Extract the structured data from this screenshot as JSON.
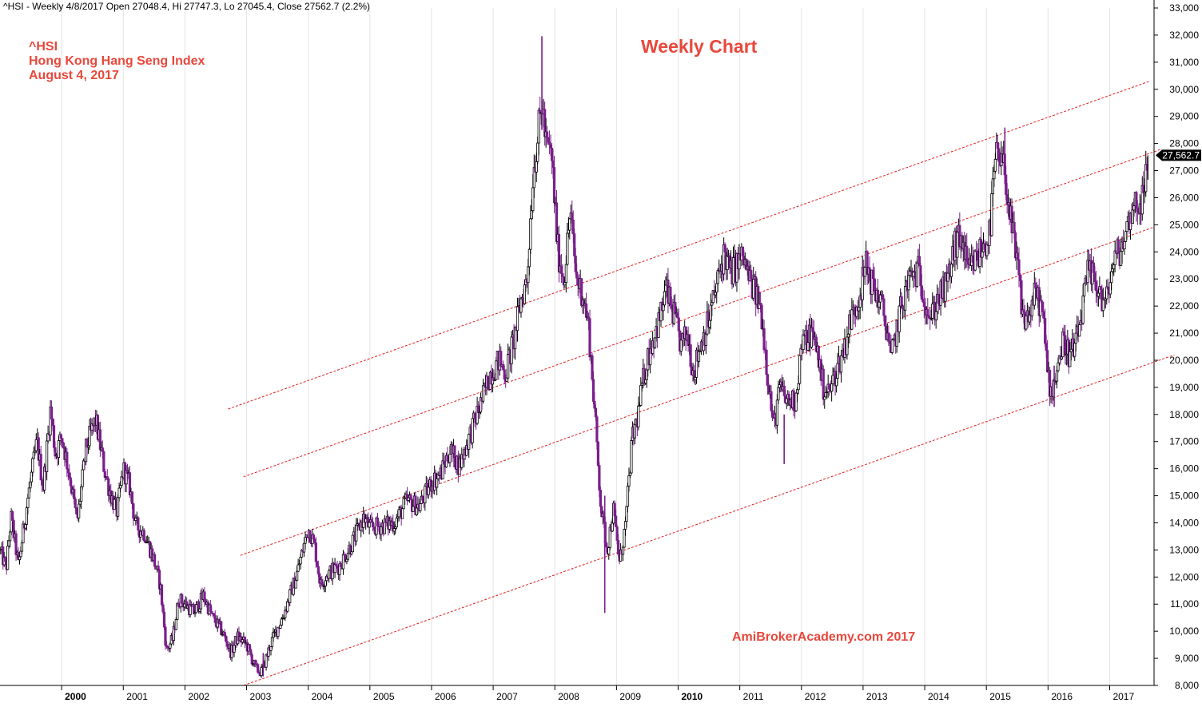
{
  "header": {
    "text": "^HSI - Weekly 4/8/2017 Open 27048.4, Hi 27747.3, Lo 27045.4, Close 27562.7 (2.2%)"
  },
  "notes": {
    "ticker": "^HSI",
    "name": "Hong Kong Hang Seng Index",
    "date": "August 4, 2017"
  },
  "watermark": "AmiBrokerAcademy.com  2017",
  "colors": {
    "candle": "#7a1f8c",
    "channel": "#e02020",
    "annotation": "#e8483c",
    "last_price_tag": "#000000"
  },
  "chart_data": {
    "type": "candlestick",
    "title": "Weekly Chart",
    "last_price": 27562.7,
    "last_price_label": "27,562.7",
    "ylim": [
      8000,
      33000
    ],
    "y_ticks": [
      8000,
      9000,
      10000,
      11000,
      12000,
      13000,
      14000,
      15000,
      16000,
      17000,
      18000,
      19000,
      20000,
      21000,
      22000,
      23000,
      24000,
      25000,
      26000,
      27000,
      28000,
      29000,
      30000,
      31000,
      32000,
      33000
    ],
    "y_tick_labels": [
      "8,000",
      "9,000",
      "10,000",
      "11,000",
      "12,000",
      "13,000",
      "14,000",
      "15,000",
      "16,000",
      "17,000",
      "18,000",
      "19,000",
      "20,000",
      "21,000",
      "22,000",
      "23,000",
      "24,000",
      "25,000",
      "26,000",
      "27,000",
      "28,000",
      "29,000",
      "30,000",
      "31,000",
      "32,000",
      "33,000"
    ],
    "xlim": [
      1999.0,
      2017.72
    ],
    "x_ticks": [
      {
        "label": "2000",
        "x": 2000.0,
        "bold": true
      },
      {
        "label": "2001",
        "x": 2001.0
      },
      {
        "label": "2002",
        "x": 2002.0
      },
      {
        "label": "2003",
        "x": 2003.0
      },
      {
        "label": "2004",
        "x": 2004.0
      },
      {
        "label": "2005",
        "x": 2005.0
      },
      {
        "label": "2006",
        "x": 2006.0
      },
      {
        "label": "2007",
        "x": 2007.0
      },
      {
        "label": "2008",
        "x": 2008.0
      },
      {
        "label": "2009",
        "x": 2009.0
      },
      {
        "label": "2010",
        "x": 2010.0,
        "bold": true
      },
      {
        "label": "2011",
        "x": 2011.0
      },
      {
        "label": "2012",
        "x": 2012.0
      },
      {
        "label": "2013",
        "x": 2013.0
      },
      {
        "label": "2014",
        "x": 2014.0
      },
      {
        "label": "2015",
        "x": 2015.0
      },
      {
        "label": "2016",
        "x": 2016.0
      },
      {
        "label": "2017",
        "x": 2017.0
      }
    ],
    "price_path": [
      [
        1999.0,
        13000
      ],
      [
        1999.1,
        12300
      ],
      [
        1999.18,
        14200
      ],
      [
        1999.3,
        12400
      ],
      [
        1999.45,
        14900
      ],
      [
        1999.6,
        17000
      ],
      [
        1999.7,
        15300
      ],
      [
        1999.82,
        18200
      ],
      [
        1999.9,
        16500
      ],
      [
        2000.0,
        17200
      ],
      [
        2000.15,
        15500
      ],
      [
        2000.25,
        14000
      ],
      [
        2000.4,
        16800
      ],
      [
        2000.55,
        17800
      ],
      [
        2000.7,
        15900
      ],
      [
        2000.8,
        15000
      ],
      [
        2000.9,
        14400
      ],
      [
        2001.0,
        16000
      ],
      [
        2001.1,
        15400
      ],
      [
        2001.2,
        13900
      ],
      [
        2001.35,
        13600
      ],
      [
        2001.5,
        12600
      ],
      [
        2001.6,
        11700
      ],
      [
        2001.7,
        9300
      ],
      [
        2001.8,
        9700
      ],
      [
        2001.9,
        11200
      ],
      [
        2002.05,
        10900
      ],
      [
        2002.15,
        10700
      ],
      [
        2002.3,
        11300
      ],
      [
        2002.45,
        10500
      ],
      [
        2002.6,
        10000
      ],
      [
        2002.75,
        9200
      ],
      [
        2002.85,
        9800
      ],
      [
        2003.0,
        9500
      ],
      [
        2003.15,
        8600
      ],
      [
        2003.25,
        8500
      ],
      [
        2003.4,
        9600
      ],
      [
        2003.6,
        10600
      ],
      [
        2003.8,
        12000
      ],
      [
        2004.0,
        13800
      ],
      [
        2004.1,
        13200
      ],
      [
        2004.2,
        11700
      ],
      [
        2004.3,
        12100
      ],
      [
        2004.5,
        12400
      ],
      [
        2004.7,
        13200
      ],
      [
        2004.9,
        14200
      ],
      [
        2005.0,
        13800
      ],
      [
        2005.2,
        13900
      ],
      [
        2005.4,
        14000
      ],
      [
        2005.6,
        14800
      ],
      [
        2005.8,
        14600
      ],
      [
        2006.0,
        15500
      ],
      [
        2006.15,
        15800
      ],
      [
        2006.3,
        16700
      ],
      [
        2006.45,
        16100
      ],
      [
        2006.6,
        17100
      ],
      [
        2006.8,
        18400
      ],
      [
        2006.95,
        19500
      ],
      [
        2007.1,
        20000
      ],
      [
        2007.2,
        19500
      ],
      [
        2007.35,
        20900
      ],
      [
        2007.45,
        22200
      ],
      [
        2007.55,
        23000
      ],
      [
        2007.65,
        27000
      ],
      [
        2007.8,
        29500
      ],
      [
        2007.85,
        28000
      ],
      [
        2007.95,
        27500
      ],
      [
        2008.05,
        24000
      ],
      [
        2008.15,
        23000
      ],
      [
        2008.25,
        25500
      ],
      [
        2008.35,
        23000
      ],
      [
        2008.45,
        22500
      ],
      [
        2008.55,
        21200
      ],
      [
        2008.65,
        18000
      ],
      [
        2008.75,
        14500
      ],
      [
        2008.85,
        13000
      ],
      [
        2008.95,
        14500
      ],
      [
        2009.05,
        12500
      ],
      [
        2009.15,
        14000
      ],
      [
        2009.25,
        17000
      ],
      [
        2009.35,
        18000
      ],
      [
        2009.45,
        19500
      ],
      [
        2009.55,
        20500
      ],
      [
        2009.7,
        21500
      ],
      [
        2009.8,
        22600
      ],
      [
        2009.95,
        21500
      ],
      [
        2010.05,
        20500
      ],
      [
        2010.15,
        21000
      ],
      [
        2010.25,
        19500
      ],
      [
        2010.35,
        20500
      ],
      [
        2010.5,
        21500
      ],
      [
        2010.6,
        22500
      ],
      [
        2010.75,
        24000
      ],
      [
        2010.85,
        23200
      ],
      [
        2010.95,
        23500
      ],
      [
        2011.05,
        23800
      ],
      [
        2011.15,
        23000
      ],
      [
        2011.25,
        22500
      ],
      [
        2011.35,
        21800
      ],
      [
        2011.45,
        19500
      ],
      [
        2011.55,
        17500
      ],
      [
        2011.65,
        19000
      ],
      [
        2011.75,
        18500
      ],
      [
        2011.9,
        18500
      ],
      [
        2012.0,
        20500
      ],
      [
        2012.15,
        21000
      ],
      [
        2012.25,
        20500
      ],
      [
        2012.35,
        19000
      ],
      [
        2012.45,
        18800
      ],
      [
        2012.55,
        19500
      ],
      [
        2012.7,
        20500
      ],
      [
        2012.8,
        21500
      ],
      [
        2012.95,
        22500
      ],
      [
        2013.05,
        23500
      ],
      [
        2013.15,
        22800
      ],
      [
        2013.3,
        22000
      ],
      [
        2013.4,
        21000
      ],
      [
        2013.45,
        20000
      ],
      [
        2013.6,
        21800
      ],
      [
        2013.75,
        23000
      ],
      [
        2013.9,
        23300
      ],
      [
        2014.0,
        22300
      ],
      [
        2014.1,
        21500
      ],
      [
        2014.2,
        22200
      ],
      [
        2014.35,
        22700
      ],
      [
        2014.5,
        24300
      ],
      [
        2014.6,
        24500
      ],
      [
        2014.7,
        23200
      ],
      [
        2014.85,
        23800
      ],
      [
        2014.95,
        24200
      ],
      [
        2015.05,
        24600
      ],
      [
        2015.15,
        27500
      ],
      [
        2015.3,
        27000
      ],
      [
        2015.4,
        25000
      ],
      [
        2015.5,
        23500
      ],
      [
        2015.6,
        21500
      ],
      [
        2015.7,
        21700
      ],
      [
        2015.8,
        22500
      ],
      [
        2015.9,
        21900
      ],
      [
        2016.0,
        19500
      ],
      [
        2016.05,
        18800
      ],
      [
        2016.15,
        19800
      ],
      [
        2016.25,
        20700
      ],
      [
        2016.35,
        20200
      ],
      [
        2016.45,
        20500
      ],
      [
        2016.55,
        21800
      ],
      [
        2016.65,
        23200
      ],
      [
        2016.75,
        23000
      ],
      [
        2016.85,
        22500
      ],
      [
        2016.9,
        22000
      ],
      [
        2016.95,
        22200
      ],
      [
        2017.05,
        23500
      ],
      [
        2017.15,
        24000
      ],
      [
        2017.25,
        24500
      ],
      [
        2017.35,
        25600
      ],
      [
        2017.45,
        25800
      ],
      [
        2017.55,
        26000
      ],
      [
        2017.6,
        27000
      ],
      [
        2017.62,
        27562.7
      ]
    ],
    "extremes": [
      {
        "x": 2007.79,
        "high": 31958,
        "low": 28500
      },
      {
        "x": 2008.81,
        "high": 15000,
        "low": 10676
      },
      {
        "x": 2003.27,
        "high": 9200,
        "low": 8331
      },
      {
        "x": 2015.3,
        "high": 28588,
        "low": 26500
      },
      {
        "x": 2016.1,
        "high": 19800,
        "low": 18278
      },
      {
        "x": 2011.72,
        "high": 18000,
        "low": 16170
      }
    ],
    "channel_lines": [
      {
        "x1": 2002.7,
        "y1": 18200,
        "x2": 2017.65,
        "y2": 30300
      },
      {
        "x1": 2002.95,
        "y1": 15700,
        "x2": 2017.85,
        "y2": 27800
      },
      {
        "x1": 2002.9,
        "y1": 12800,
        "x2": 2017.7,
        "y2": 24900
      },
      {
        "x1": 2002.95,
        "y1": 8000,
        "x2": 2018.05,
        "y2": 20200
      }
    ]
  }
}
